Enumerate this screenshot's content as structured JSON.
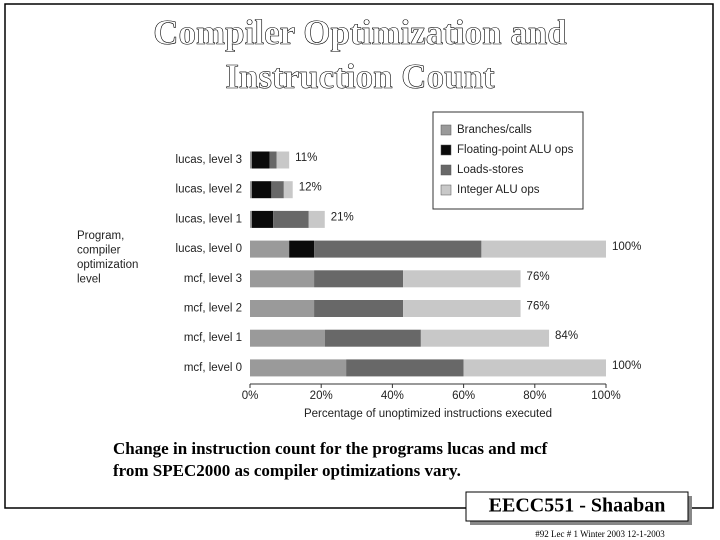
{
  "title": [
    "Compiler Optimization and",
    "Instruction Count"
  ],
  "caption": [
    "Change in instruction count for the programs lucas and mcf",
    "from SPEC2000 as compiler optimizations vary."
  ],
  "footer": {
    "badge": "EECC551 - Shaaban",
    "info": "#92  Lec # 1  Winter 2003  12-1-2003"
  },
  "chart_data": {
    "type": "stacked-barh",
    "categories": [
      "lucas, level 3",
      "lucas, level 2",
      "lucas, level 1",
      "lucas, level 0",
      "mcf, level 3",
      "mcf, level 2",
      "mcf, level 1",
      "mcf, level 0"
    ],
    "series": [
      {
        "name": "Branches/calls",
        "color": "#9a9a9a",
        "values": [
          0.5,
          0.5,
          0.5,
          11,
          18,
          18,
          21,
          27
        ]
      },
      {
        "name": "Floating-point ALU ops",
        "color": "#0a0a0a",
        "values": [
          5,
          5.5,
          6,
          7,
          0,
          0,
          0,
          0
        ]
      },
      {
        "name": "Loads-stores",
        "color": "#686868",
        "values": [
          2,
          3.5,
          10,
          47,
          25,
          25,
          27,
          33
        ]
      },
      {
        "name": "Integer ALU ops",
        "color": "#c8c8c8",
        "values": [
          3.5,
          2.5,
          4.5,
          35,
          33,
          33,
          36,
          40
        ]
      }
    ],
    "totals": [
      11,
      12,
      21,
      100,
      76,
      76,
      84,
      100
    ],
    "total_labels": [
      "11%",
      "12%",
      "21%",
      "100%",
      "76%",
      "76%",
      "84%",
      "100%"
    ],
    "xlim": [
      0,
      100
    ],
    "xticks": [
      {
        "value": 0,
        "label": "0%"
      },
      {
        "value": 20,
        "label": "20%"
      },
      {
        "value": 40,
        "label": "40%"
      },
      {
        "value": 60,
        "label": "60%"
      },
      {
        "value": 80,
        "label": "80%"
      },
      {
        "value": 100,
        "label": "100%"
      }
    ],
    "xlabel": "Percentage of unoptimized instructions executed",
    "ylabel": [
      "Program,",
      "compiler",
      "optimization",
      "level"
    ],
    "legend": "upper right"
  }
}
